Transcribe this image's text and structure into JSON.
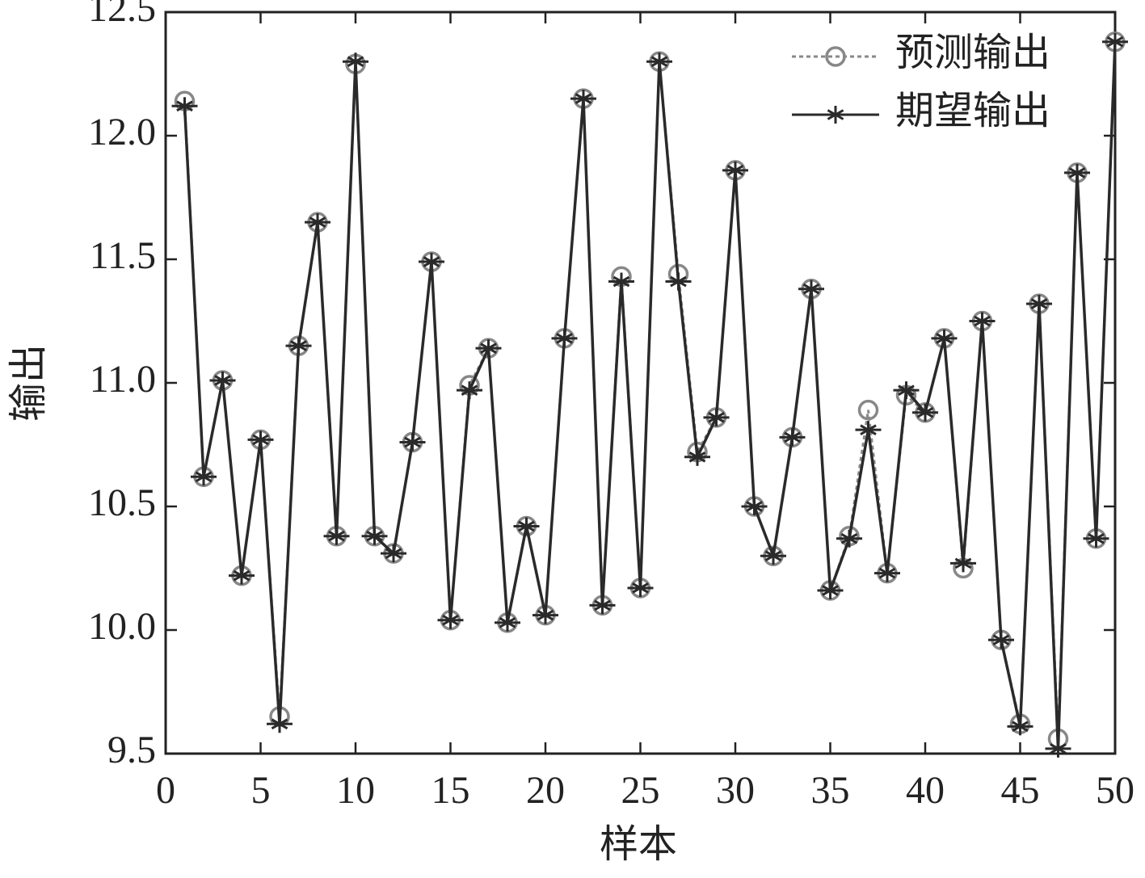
{
  "chart_data": {
    "type": "line",
    "x_label": "样本",
    "y_label": "输出",
    "x": [
      1,
      2,
      3,
      4,
      5,
      6,
      7,
      8,
      9,
      10,
      11,
      12,
      13,
      14,
      15,
      16,
      17,
      18,
      19,
      20,
      21,
      22,
      23,
      24,
      25,
      26,
      27,
      28,
      29,
      30,
      31,
      32,
      33,
      34,
      35,
      36,
      37,
      38,
      39,
      40,
      41,
      42,
      43,
      44,
      45,
      46,
      47,
      48,
      49,
      50
    ],
    "series": [
      {
        "name": "预测输出",
        "color": "#888888",
        "marker": "circle",
        "dashed": true,
        "values": [
          12.14,
          10.62,
          11.01,
          10.22,
          10.77,
          9.65,
          11.15,
          11.65,
          10.38,
          12.29,
          10.38,
          10.31,
          10.76,
          11.49,
          10.04,
          10.99,
          11.14,
          10.03,
          10.42,
          10.06,
          11.18,
          12.15,
          10.1,
          11.43,
          10.17,
          12.3,
          11.44,
          10.72,
          10.86,
          11.86,
          10.5,
          10.3,
          10.78,
          11.38,
          10.16,
          10.38,
          10.89,
          10.23,
          10.95,
          10.88,
          11.18,
          10.25,
          11.25,
          9.96,
          9.62,
          11.32,
          9.56,
          11.85,
          10.37,
          12.38
        ]
      },
      {
        "name": "期望输出",
        "color": "#2a2a2a",
        "marker": "star",
        "dashed": false,
        "values": [
          12.12,
          10.62,
          11.01,
          10.22,
          10.77,
          9.62,
          11.15,
          11.65,
          10.38,
          12.3,
          10.38,
          10.31,
          10.76,
          11.49,
          10.04,
          10.97,
          11.14,
          10.03,
          10.42,
          10.06,
          11.18,
          12.15,
          10.1,
          11.41,
          10.17,
          12.3,
          11.41,
          10.7,
          10.86,
          11.86,
          10.5,
          10.3,
          10.78,
          11.38,
          10.16,
          10.37,
          10.81,
          10.23,
          10.97,
          10.88,
          11.18,
          10.27,
          11.25,
          9.96,
          9.61,
          11.32,
          9.52,
          11.85,
          10.37,
          12.38
        ]
      }
    ],
    "xlim": [
      0,
      50
    ],
    "ylim": [
      9.5,
      12.5
    ],
    "xticks": [
      0,
      5,
      10,
      15,
      20,
      25,
      30,
      35,
      40,
      45,
      50
    ],
    "yticks": [
      9.5,
      {
        "value": 10,
        "label": "10.0"
      },
      10.5,
      {
        "value": 11,
        "label": "11.0"
      },
      11.5,
      {
        "value": 12,
        "label": "12.0"
      },
      12.5
    ],
    "legend": "upper right",
    "grid": false
  }
}
